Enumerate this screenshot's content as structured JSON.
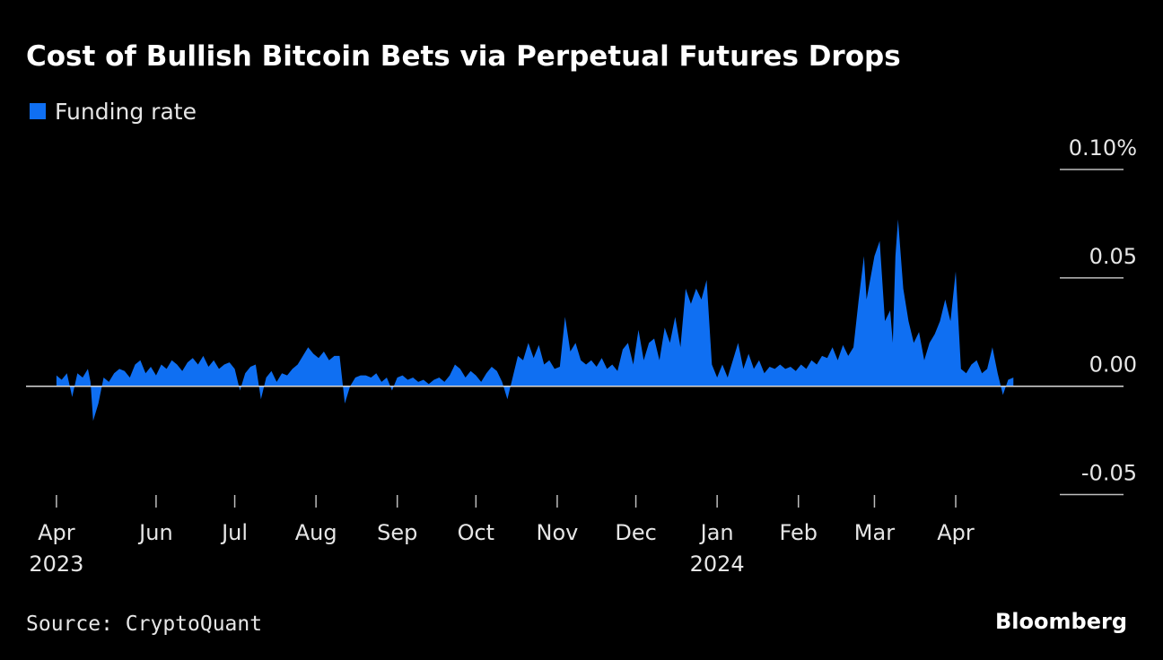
{
  "chart_data": {
    "type": "area",
    "title": "Cost of Bullish Bitcoin Bets via Perpetual Futures Drops",
    "source": "Source: CryptoQuant",
    "brand": "Bloomberg",
    "legend": "top-left",
    "series": [
      {
        "name": "Funding rate",
        "color": "#0f6ff2",
        "x": [
          -38,
          -36,
          -34,
          -32,
          -30,
          -28,
          -26,
          -25,
          -24,
          -22,
          -20,
          -18,
          -16,
          -14,
          -12,
          -10,
          -8,
          -6,
          -4,
          -2,
          0,
          2,
          4,
          6,
          8,
          10,
          12,
          14,
          16,
          18,
          20,
          22,
          24,
          26,
          28,
          30,
          32,
          34,
          36,
          38,
          40,
          42,
          44,
          46,
          48,
          50,
          52,
          54,
          56,
          58,
          60,
          62,
          64,
          66,
          68,
          70,
          72,
          74,
          76,
          78,
          80,
          82,
          84,
          86,
          88,
          90,
          92,
          94,
          96,
          98,
          100,
          102,
          104,
          106,
          108,
          110,
          112,
          114,
          116,
          118,
          120,
          122,
          124,
          126,
          128,
          130,
          132,
          134,
          136,
          138,
          140,
          142,
          144,
          146,
          148,
          150,
          152,
          154,
          156,
          158,
          160,
          162,
          164,
          166,
          168,
          170,
          172,
          174,
          176,
          178,
          180,
          182,
          184,
          186,
          188,
          190,
          192,
          194,
          196,
          198,
          200,
          202,
          204,
          206,
          208,
          210,
          212,
          214,
          216,
          218,
          220,
          222,
          224,
          226,
          228,
          230,
          232,
          234,
          236,
          238,
          240,
          242,
          244,
          246,
          248,
          250,
          252,
          254,
          256,
          258,
          260,
          262,
          264,
          266,
          268,
          270,
          271,
          274,
          276,
          278,
          280,
          281,
          282,
          283,
          285,
          287,
          289,
          291,
          293,
          295,
          297,
          299,
          301,
          303,
          305,
          307,
          309,
          311,
          313,
          315,
          317,
          319,
          321,
          323,
          325,
          327
        ],
        "values": [
          0.005,
          0.003,
          0.006,
          -0.005,
          0.006,
          0.004,
          0.008,
          0.002,
          -0.016,
          -0.008,
          0.004,
          0.002,
          0.006,
          0.008,
          0.007,
          0.004,
          0.01,
          0.012,
          0.006,
          0.009,
          0.005,
          0.01,
          0.008,
          0.012,
          0.01,
          0.007,
          0.011,
          0.013,
          0.01,
          0.014,
          0.009,
          0.012,
          0.008,
          0.01,
          0.011,
          0.008,
          -0.002,
          0.006,
          0.009,
          0.01,
          -0.006,
          0.004,
          0.007,
          0.002,
          0.006,
          0.005,
          0.008,
          0.01,
          0.014,
          0.018,
          0.015,
          0.013,
          0.016,
          0.012,
          0.014,
          0.014,
          -0.008,
          0.0,
          0.004,
          0.005,
          0.005,
          0.004,
          0.006,
          0.002,
          0.004,
          -0.002,
          0.004,
          0.005,
          0.003,
          0.004,
          0.002,
          0.003,
          0.001,
          0.003,
          0.004,
          0.002,
          0.005,
          0.01,
          0.008,
          0.004,
          0.007,
          0.005,
          0.002,
          0.006,
          0.009,
          0.007,
          0.002,
          -0.006,
          0.004,
          0.014,
          0.012,
          0.02,
          0.013,
          0.019,
          0.01,
          0.012,
          0.008,
          0.009,
          0.032,
          0.016,
          0.02,
          0.012,
          0.01,
          0.012,
          0.009,
          0.013,
          0.008,
          0.01,
          0.007,
          0.017,
          0.02,
          0.01,
          0.026,
          0.012,
          0.02,
          0.022,
          0.012,
          0.027,
          0.02,
          0.032,
          0.018,
          0.045,
          0.038,
          0.045,
          0.04,
          0.049,
          0.01,
          0.004,
          0.01,
          0.004,
          0.012,
          0.02,
          0.008,
          0.015,
          0.008,
          0.012,
          0.006,
          0.009,
          0.008,
          0.01,
          0.008,
          0.009,
          0.007,
          0.01,
          0.008,
          0.012,
          0.01,
          0.014,
          0.013,
          0.018,
          0.012,
          0.019,
          0.014,
          0.018,
          0.04,
          0.06,
          0.04,
          0.06,
          0.067,
          0.03,
          0.035,
          0.02,
          0.06,
          0.077,
          0.045,
          0.03,
          0.02,
          0.025,
          0.012,
          0.02,
          0.024,
          0.03,
          0.04,
          0.03,
          0.053,
          0.008,
          0.006,
          0.01,
          0.012,
          0.006,
          0.008,
          0.018,
          0.006,
          -0.004,
          0.003,
          0.004
        ]
      }
    ],
    "xlim": [
      -49.6,
      369
    ],
    "xticks": [
      {
        "value": -38,
        "label": "Apr",
        "sublabel": "2023"
      },
      {
        "value": 0,
        "label": "Jun"
      },
      {
        "value": 30,
        "label": "Jul"
      },
      {
        "value": 61,
        "label": "Aug"
      },
      {
        "value": 92,
        "label": "Sep"
      },
      {
        "value": 122,
        "label": "Oct"
      },
      {
        "value": 153,
        "label": "Nov"
      },
      {
        "value": 183,
        "label": "Dec"
      },
      {
        "value": 214,
        "label": "Jan",
        "sublabel": "2024"
      },
      {
        "value": 245,
        "label": "Feb"
      },
      {
        "value": 274,
        "label": "Mar"
      },
      {
        "value": 305,
        "label": "Apr"
      }
    ],
    "ylim": [
      -0.0535,
      0.1
    ],
    "yticks": [
      {
        "value": 0.1,
        "label": "0.10%"
      },
      0.05,
      {
        "value": 0,
        "label": "0.00"
      },
      -0.05
    ]
  }
}
